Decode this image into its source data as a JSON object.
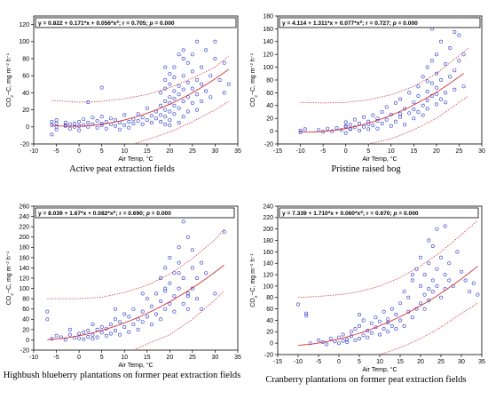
{
  "colors": {
    "points": "#2a36c8",
    "fit": "#d2323a",
    "ci": "#d2323a"
  },
  "chart_data": [
    {
      "type": "scatter",
      "caption": "Active peat extraction fields",
      "equation_parts": [
        "y = 0.822 + 0.171*x + 0.056*x",
        "2",
        "; r = 0.705; ",
        "p",
        " = 0.000"
      ],
      "xlabel": "Air Temp, °C",
      "ylabel_parts": [
        "CO",
        "2",
        "−C, mg m",
        "−2",
        " h",
        "−1"
      ],
      "xlim": [
        -10,
        35
      ],
      "ylim": [
        -20,
        130
      ],
      "xticks": [
        -10,
        -5,
        0,
        5,
        10,
        15,
        20,
        25,
        30,
        35
      ],
      "yticks": [
        -20,
        0,
        20,
        40,
        60,
        80,
        100,
        120
      ],
      "fit": {
        "a": 0.822,
        "b": 0.171,
        "c": 0.056
      },
      "ci_upper": [
        [
          -6,
          31
        ],
        [
          0,
          29
        ],
        [
          5,
          30
        ],
        [
          10,
          33
        ],
        [
          15,
          38
        ],
        [
          20,
          46
        ],
        [
          25,
          57
        ],
        [
          30,
          70
        ],
        [
          33,
          83
        ]
      ],
      "ci_lower": [
        [
          12,
          -20
        ],
        [
          15,
          -15
        ],
        [
          20,
          -6
        ],
        [
          25,
          6
        ],
        [
          30,
          20
        ],
        [
          33,
          30
        ]
      ],
      "x": [
        -6,
        -6,
        -6,
        -5,
        -5,
        -5,
        -5,
        -3,
        -3,
        -3,
        -2,
        -2,
        -1,
        -1,
        0,
        0,
        0,
        1,
        1,
        2,
        2,
        3,
        3,
        4,
        4,
        5,
        5,
        5,
        6,
        6,
        7,
        7,
        8,
        8,
        9,
        9,
        10,
        10,
        11,
        11,
        12,
        12,
        13,
        13,
        14,
        14,
        15,
        15,
        16,
        16,
        17,
        17,
        18,
        18,
        18,
        18,
        19,
        19,
        19,
        19,
        19,
        19,
        20,
        20,
        20,
        20,
        20,
        20,
        20,
        21,
        21,
        21,
        21,
        21,
        21,
        22,
        22,
        22,
        22,
        22,
        23,
        23,
        23,
        23,
        23,
        23,
        24,
        24,
        24,
        24,
        24,
        25,
        25,
        25,
        25,
        26,
        26,
        26,
        26,
        27,
        27,
        27,
        28,
        28,
        29,
        29,
        30,
        30,
        31,
        32,
        32,
        33,
        5,
        2,
        22,
        19
      ],
      "y": [
        -9,
        2,
        6,
        0,
        4,
        8,
        -3,
        1,
        5,
        2,
        3,
        -2,
        0,
        4,
        1,
        6,
        -4,
        2,
        9,
        0,
        5,
        3,
        11,
        -1,
        7,
        2,
        12,
        4,
        -2,
        6,
        3,
        10,
        1,
        8,
        5,
        -3,
        2,
        14,
        6,
        -1,
        4,
        9,
        7,
        15,
        3,
        11,
        8,
        22,
        5,
        13,
        10,
        18,
        6,
        25,
        40,
        14,
        3,
        30,
        55,
        20,
        12,
        45,
        8,
        35,
        62,
        18,
        28,
        50,
        2,
        15,
        42,
        70,
        25,
        58,
        33,
        5,
        38,
        85,
        48,
        22,
        12,
        44,
        80,
        30,
        60,
        90,
        18,
        52,
        75,
        35,
        120,
        28,
        65,
        45,
        85,
        20,
        55,
        100,
        38,
        30,
        70,
        50,
        42,
        90,
        60,
        35,
        80,
        100,
        55,
        40,
        75,
        50,
        46,
        29,
        120,
        70
      ]
    },
    {
      "type": "scatter",
      "caption": "Pristine raised bog",
      "equation_parts": [
        "y = 4.114 + 1.311*x + 0.077*x",
        "2",
        "; r = 0.727; ",
        "p",
        " = 0.000"
      ],
      "xlabel": "Air Temp, °C",
      "ylabel_parts": [
        "CO",
        "2",
        "−C, mg m",
        "−2",
        " h",
        "−1"
      ],
      "xlim": [
        -15,
        30
      ],
      "ylim": [
        -20,
        180
      ],
      "xticks": [
        -15,
        -10,
        -5,
        0,
        5,
        10,
        15,
        20,
        25,
        30
      ],
      "yticks": [
        -20,
        0,
        20,
        40,
        60,
        80,
        100,
        120,
        140,
        160,
        180
      ],
      "fit": {
        "a": 4.114,
        "b": 1.311,
        "c": 0.077
      },
      "ci_upper": [
        [
          -10,
          45
        ],
        [
          -5,
          44
        ],
        [
          0,
          45
        ],
        [
          5,
          49
        ],
        [
          10,
          57
        ],
        [
          15,
          70
        ],
        [
          20,
          90
        ],
        [
          25,
          118
        ],
        [
          27,
          130
        ]
      ],
      "ci_lower": [
        [
          5,
          -20
        ],
        [
          10,
          -12
        ],
        [
          15,
          2
        ],
        [
          20,
          20
        ],
        [
          25,
          45
        ],
        [
          27,
          55
        ]
      ],
      "x": [
        -10,
        -10,
        -9,
        -6,
        -5,
        -4,
        -3,
        -2,
        -1,
        0,
        0,
        0,
        1,
        1,
        2,
        2,
        3,
        3,
        4,
        4,
        5,
        5,
        6,
        6,
        7,
        7,
        8,
        8,
        9,
        9,
        10,
        10,
        11,
        11,
        12,
        12,
        13,
        13,
        14,
        14,
        15,
        15,
        16,
        16,
        16,
        17,
        17,
        17,
        18,
        18,
        18,
        18,
        19,
        19,
        19,
        20,
        20,
        20,
        20,
        21,
        21,
        21,
        22,
        22,
        22,
        23,
        23,
        24,
        24,
        25,
        25,
        26,
        26,
        0,
        1,
        5,
        7,
        12,
        15,
        19,
        22,
        24,
        20,
        18
      ],
      "y": [
        1,
        -2,
        3,
        2,
        -1,
        4,
        0,
        5,
        2,
        8,
        -3,
        14,
        3,
        10,
        6,
        18,
        1,
        12,
        22,
        7,
        3,
        15,
        25,
        9,
        4,
        20,
        30,
        12,
        18,
        38,
        8,
        26,
        44,
        15,
        22,
        50,
        10,
        35,
        28,
        60,
        20,
        45,
        70,
        30,
        55,
        40,
        85,
        25,
        48,
        100,
        62,
        35,
        55,
        110,
        75,
        42,
        120,
        68,
        90,
        50,
        140,
        80,
        60,
        105,
        45,
        85,
        130,
        95,
        65,
        110,
        150,
        70,
        120,
        6,
        4,
        11,
        16,
        27,
        34,
        160,
        170,
        155,
        58,
        78
      ]
    },
    {
      "type": "scatter",
      "caption": "Highbush blueberry plantations on former peat extraction fields",
      "equation_parts": [
        "y = 8.039 + 1.67*x + 0.082*x",
        "2",
        "; r = 0.690; ",
        "p",
        " = 0.000"
      ],
      "xlabel": "Air Temp, °C",
      "ylabel_parts": [
        "CO",
        "2",
        "−C, mg m",
        "−2",
        " h",
        "−1"
      ],
      "xlim": [
        -10,
        35
      ],
      "ylim": [
        -20,
        260
      ],
      "xticks": [
        -10,
        -5,
        0,
        5,
        10,
        15,
        20,
        25,
        30,
        35
      ],
      "yticks": [
        -20,
        0,
        20,
        40,
        60,
        80,
        100,
        120,
        140,
        160,
        180,
        200,
        220,
        240,
        260
      ],
      "fit": {
        "a": 8.039,
        "b": 1.67,
        "c": 0.082
      },
      "ci_upper": [
        [
          -7,
          80
        ],
        [
          0,
          80
        ],
        [
          5,
          83
        ],
        [
          10,
          92
        ],
        [
          15,
          106
        ],
        [
          20,
          128
        ],
        [
          25,
          158
        ],
        [
          30,
          195
        ],
        [
          32,
          215
        ]
      ],
      "ci_lower": [
        [
          12,
          -20
        ],
        [
          15,
          -8
        ],
        [
          20,
          10
        ],
        [
          25,
          40
        ],
        [
          30,
          78
        ],
        [
          32,
          95
        ]
      ],
      "x": [
        -7,
        -7,
        -6,
        -5,
        -4,
        -3,
        -2,
        -1,
        0,
        0,
        1,
        1,
        2,
        2,
        3,
        3,
        4,
        4,
        5,
        5,
        6,
        6,
        7,
        7,
        8,
        8,
        9,
        9,
        10,
        10,
        11,
        11,
        12,
        12,
        13,
        13,
        14,
        14,
        15,
        15,
        16,
        16,
        17,
        17,
        18,
        18,
        18,
        19,
        19,
        19,
        20,
        20,
        20,
        21,
        21,
        21,
        22,
        22,
        22,
        23,
        23,
        23,
        24,
        24,
        24,
        25,
        25,
        25,
        26,
        26,
        27,
        27,
        28,
        30,
        32,
        32,
        -2,
        3,
        8,
        14,
        19,
        22,
        24
      ],
      "y": [
        40,
        55,
        2,
        8,
        5,
        0,
        10,
        4,
        3,
        12,
        1,
        15,
        6,
        18,
        2,
        10,
        20,
        5,
        14,
        25,
        8,
        22,
        12,
        30,
        18,
        40,
        10,
        35,
        25,
        50,
        15,
        45,
        30,
        60,
        20,
        40,
        55,
        35,
        45,
        80,
        30,
        65,
        90,
        50,
        120,
        40,
        75,
        60,
        140,
        95,
        70,
        110,
        160,
        85,
        130,
        55,
        100,
        180,
        150,
        70,
        230,
        120,
        90,
        200,
        60,
        140,
        100,
        175,
        80,
        120,
        150,
        60,
        130,
        90,
        250,
        210,
        20,
        30,
        60,
        90,
        100,
        130,
        85
      ]
    },
    {
      "type": "scatter",
      "caption": "Cranberry plantations on former peat extraction fields",
      "equation_parts": [
        "y = 7.339 + 1.710*x + 0.060*x",
        "2",
        "; r = 0.670; ",
        "p",
        " = 0.000"
      ],
      "xlabel": "Air Temp, °C",
      "ylabel_parts": [
        "CO",
        "2",
        "−C, mg m",
        "−2",
        " h",
        "−1"
      ],
      "xlim": [
        -15,
        35
      ],
      "ylim": [
        -20,
        240
      ],
      "xticks": [
        -15,
        -10,
        -5,
        0,
        5,
        10,
        15,
        20,
        25,
        30,
        35
      ],
      "yticks": [
        -20,
        0,
        20,
        40,
        60,
        80,
        100,
        120,
        140,
        160,
        180,
        200,
        220,
        240
      ],
      "fit": {
        "a": 7.339,
        "b": 1.71,
        "c": 0.06
      },
      "ci_upper": [
        [
          -10,
          80
        ],
        [
          -5,
          82
        ],
        [
          0,
          85
        ],
        [
          5,
          90
        ],
        [
          10,
          100
        ],
        [
          15,
          115
        ],
        [
          20,
          135
        ],
        [
          25,
          160
        ],
        [
          30,
          190
        ],
        [
          34,
          215
        ]
      ],
      "ci_lower": [
        [
          10,
          -20
        ],
        [
          15,
          -8
        ],
        [
          20,
          8
        ],
        [
          25,
          28
        ],
        [
          30,
          52
        ],
        [
          34,
          70
        ]
      ],
      "x": [
        -10,
        -8,
        -7,
        -5,
        -4,
        -3,
        -2,
        -1,
        0,
        0,
        1,
        1,
        2,
        2,
        3,
        3,
        4,
        4,
        5,
        5,
        6,
        6,
        7,
        7,
        8,
        8,
        9,
        9,
        10,
        10,
        11,
        11,
        12,
        12,
        13,
        13,
        14,
        14,
        15,
        15,
        16,
        16,
        17,
        17,
        18,
        18,
        19,
        19,
        20,
        20,
        20,
        21,
        21,
        21,
        22,
        22,
        22,
        23,
        23,
        23,
        24,
        24,
        24,
        25,
        25,
        26,
        26,
        27,
        27,
        28,
        29,
        30,
        31,
        32,
        33,
        34,
        -8,
        5,
        12,
        18,
        22,
        26
      ],
      "y": [
        68,
        48,
        0,
        5,
        2,
        -2,
        8,
        3,
        10,
        0,
        4,
        15,
        6,
        2,
        12,
        20,
        5,
        25,
        8,
        30,
        14,
        40,
        10,
        22,
        35,
        18,
        28,
        45,
        15,
        38,
        25,
        55,
        20,
        42,
        30,
        60,
        25,
        50,
        70,
        40,
        30,
        90,
        55,
        80,
        45,
        110,
        60,
        130,
        70,
        100,
        150,
        85,
        120,
        60,
        95,
        140,
        75,
        110,
        170,
        90,
        100,
        200,
        130,
        80,
        150,
        120,
        95,
        140,
        110,
        100,
        160,
        125,
        110,
        90,
        105,
        85,
        52,
        50,
        36,
        120,
        180,
        205
      ]
    }
  ]
}
